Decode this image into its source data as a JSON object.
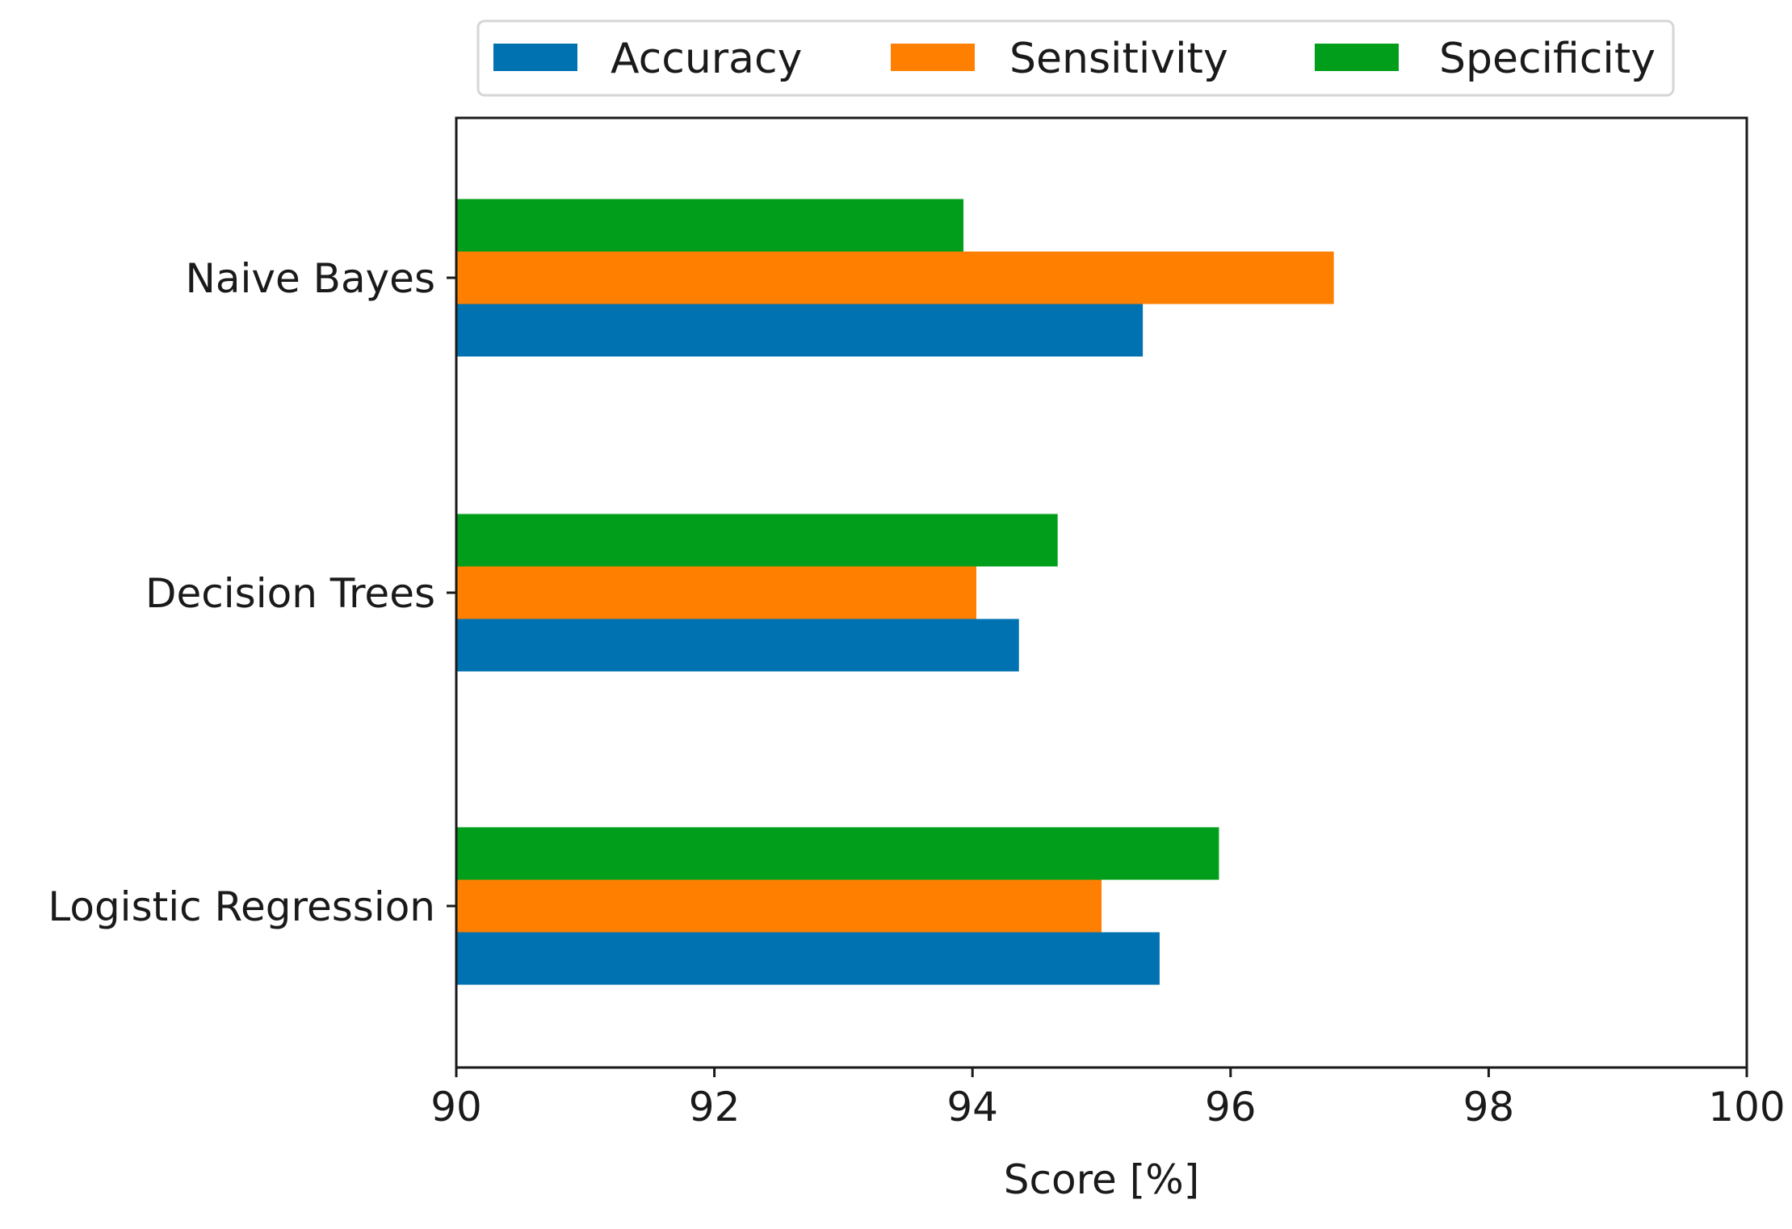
{
  "chart_data": {
    "type": "bar",
    "orientation": "horizontal",
    "categories": [
      "Logistic Regression",
      "Decision Trees",
      "Naive Bayes"
    ],
    "series": [
      {
        "name": "Accuracy",
        "color": "#0072b2",
        "values": [
          95.45,
          94.36,
          95.32
        ]
      },
      {
        "name": "Sensitivity",
        "color": "#ff7f00",
        "values": [
          95.0,
          94.03,
          96.8
        ]
      },
      {
        "name": "Specificity",
        "color": "#009e1a",
        "values": [
          95.91,
          94.66,
          93.93
        ]
      }
    ],
    "xlabel": "Score [%]",
    "ylabel": "",
    "title": "",
    "xlim": [
      90,
      100
    ],
    "xticks": [
      "90",
      "92",
      "94",
      "96",
      "98",
      "100"
    ],
    "grid": false,
    "legend_placement": "top-center, above plot"
  }
}
